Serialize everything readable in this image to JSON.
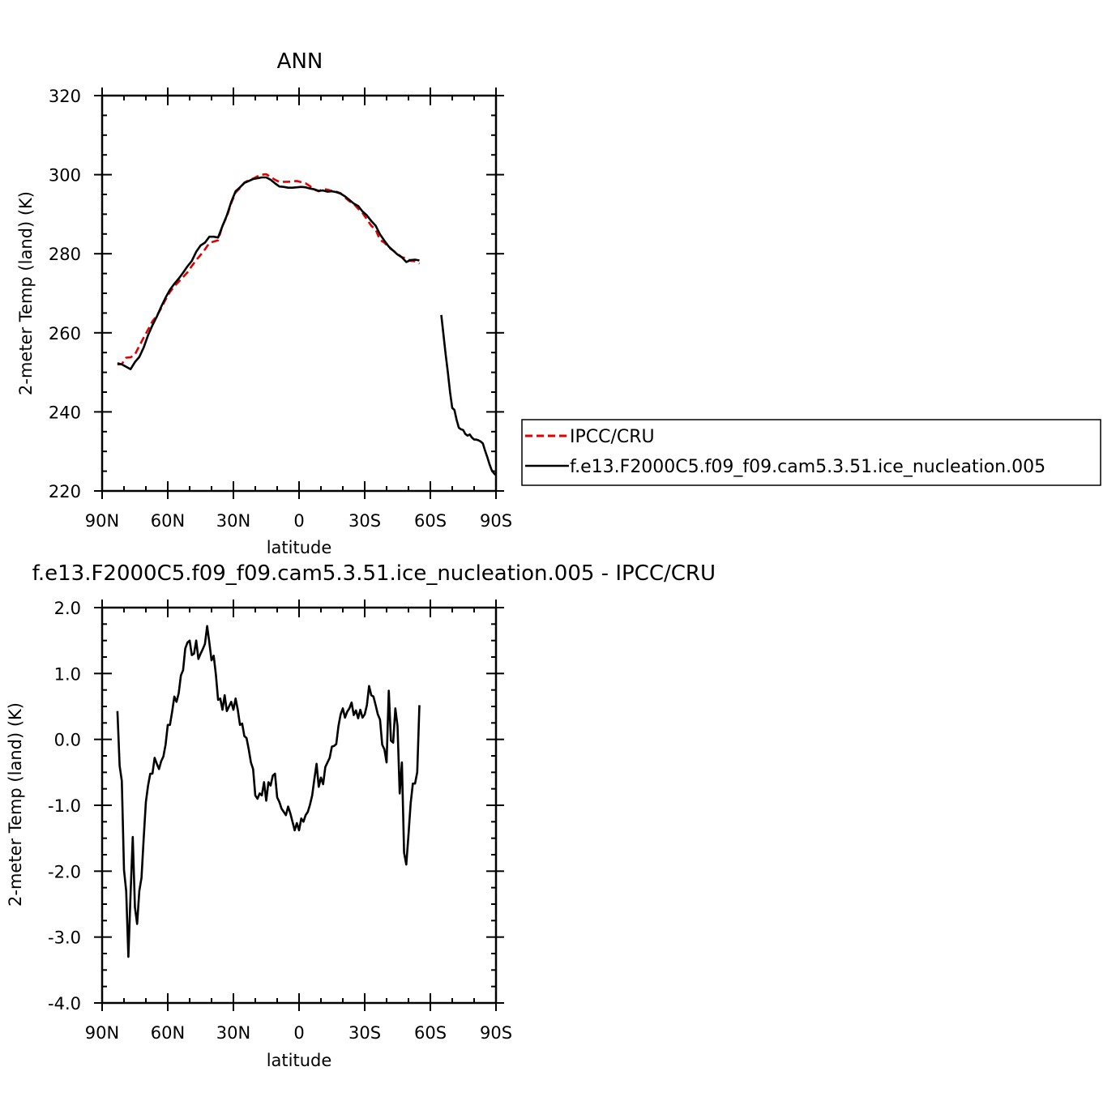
{
  "chart_data": [
    {
      "type": "line",
      "title": "ANN",
      "xlabel": "latitude",
      "ylabel": "2-meter Temp (land) (K)",
      "xlim": [
        90,
        -90
      ],
      "ylim": [
        220,
        320
      ],
      "xticks": [
        90,
        60,
        30,
        0,
        -30,
        -60,
        -90
      ],
      "xtick_labels": [
        "90N",
        "60N",
        "30N",
        "0",
        "30S",
        "60S",
        "90S"
      ],
      "yticks": [
        220,
        240,
        260,
        280,
        300,
        320
      ],
      "ytick_labels": [
        "220",
        "240",
        "260",
        "280",
        "300",
        "320"
      ],
      "legend_position": "right",
      "series": [
        {
          "name": "IPCC/CRU",
          "color": "#e00000",
          "dash": "dashed",
          "segments": [
            {
              "x": [
                83,
                81,
                79,
                77,
                75,
                73,
                71,
                69,
                67,
                65,
                63,
                61,
                59,
                57,
                55,
                53,
                51,
                49,
                47,
                45,
                43,
                41,
                39,
                37,
                35,
                33,
                31,
                29,
                27,
                25,
                23,
                21,
                19,
                17,
                15,
                13,
                11,
                9,
                7,
                5,
                3,
                1,
                -1,
                -3,
                -5,
                -7,
                -9,
                -11,
                -13,
                -15,
                -17,
                -19,
                -21,
                -23,
                -25,
                -27,
                -29,
                -31,
                -33,
                -35,
                -37,
                -39,
                -41,
                -43,
                -45,
                -47,
                -49,
                -51,
                -53,
                -55
              ],
              "y": [
                252.0,
                252.1,
                253.7,
                253.8,
                254.5,
                256.7,
                258.8,
                260.8,
                262.9,
                264.3,
                266.2,
                268.4,
                270.3,
                271.8,
                272.9,
                274.1,
                275.3,
                276.9,
                278.4,
                279.7,
                281.1,
                282.7,
                283.1,
                283.4,
                287.1,
                289.4,
                292.8,
                295.5,
                296.6,
                298.0,
                298.6,
                299.0,
                299.6,
                300.0,
                300.1,
                299.4,
                298.7,
                298.2,
                298.2,
                298.2,
                298.3,
                298.4,
                298.1,
                297.8,
                297.1,
                296.2,
                295.8,
                296.4,
                296.2,
                295.9,
                295.7,
                295.3,
                294.2,
                293.3,
                292.6,
                291.4,
                290.3,
                288.7,
                287.1,
                286.1,
                283.5,
                282.8,
                281.6,
                280.8,
                280.0,
                279.1,
                278.9,
                278.2,
                278.1,
                277.5
              ]
            }
          ]
        },
        {
          "name": "f.e13.F2000C5.f09_f09.cam5.3.51.ice_nucleation.005",
          "color": "#000000",
          "dash": "solid",
          "segments": [
            {
              "x": [
                83,
                81,
                79,
                77,
                75,
                73,
                71,
                69,
                67,
                65,
                63,
                61,
                59,
                57,
                55,
                53,
                51,
                49,
                47,
                45,
                43,
                41,
                39,
                37,
                35,
                33,
                31,
                29,
                27,
                25,
                23,
                21,
                19,
                17,
                15,
                13,
                11,
                9,
                7,
                5,
                3,
                1,
                -1,
                -3,
                -5,
                -7,
                -9,
                -11,
                -13,
                -15,
                -17,
                -19,
                -21,
                -23,
                -25,
                -27,
                -29,
                -31,
                -33,
                -35,
                -37,
                -39,
                -41,
                -43,
                -45,
                -47,
                -49,
                -51,
                -53,
                -55
              ],
              "y": [
                252.3,
                252.0,
                251.4,
                250.8,
                252.6,
                253.9,
                256.3,
                259.4,
                261.9,
                264.1,
                266.6,
                268.9,
                270.9,
                272.4,
                273.7,
                275.2,
                276.8,
                278.2,
                280.5,
                282.1,
                282.8,
                284.3,
                284.3,
                284.1,
                287.0,
                289.7,
                293.1,
                295.8,
                296.8,
                297.9,
                298.4,
                298.9,
                299.1,
                299.3,
                299.3,
                298.7,
                297.8,
                297.0,
                296.9,
                296.7,
                296.7,
                296.8,
                296.9,
                296.8,
                296.5,
                296.3,
                295.9,
                296.0,
                295.7,
                295.8,
                295.6,
                295.2,
                294.5,
                293.6,
                292.7,
                292.1,
                290.7,
                289.7,
                288.3,
                287.1,
                284.9,
                283.3,
                281.8,
                280.8,
                279.8,
                279.1,
                277.9,
                278.4,
                278.5,
                278.3
              ]
            },
            {
              "x": [
                -65,
                -66,
                -67,
                -68,
                -69,
                -70,
                -71,
                -72,
                -73,
                -74,
                -75,
                -76,
                -77,
                -78,
                -79,
                -80,
                -81,
                -82,
                -83,
                -84,
                -85,
                -86,
                -87,
                -88,
                -89,
                -90
              ],
              "y": [
                264.5,
                259.5,
                254.5,
                250.0,
                245.0,
                241.0,
                240.5,
                238.0,
                236.0,
                235.6,
                235.4,
                234.4,
                234.0,
                234.3,
                233.5,
                233.0,
                233.0,
                232.8,
                232.5,
                232.0,
                230.2,
                228.6,
                226.8,
                225.3,
                224.5,
                224.0
              ]
            }
          ]
        }
      ]
    },
    {
      "type": "line",
      "title": "f.e13.F2000C5.f09_f09.cam5.3.51.ice_nucleation.005 - IPCC/CRU",
      "xlabel": "latitude",
      "ylabel": "2-meter Temp (land) (K)",
      "xlim": [
        90,
        -90
      ],
      "ylim": [
        -4.0,
        2.0
      ],
      "xticks": [
        90,
        60,
        30,
        0,
        -30,
        -60,
        -90
      ],
      "xtick_labels": [
        "90N",
        "60N",
        "30N",
        "0",
        "30S",
        "60S",
        "90S"
      ],
      "yticks": [
        -4.0,
        -3.0,
        -2.0,
        -1.0,
        0.0,
        1.0,
        2.0
      ],
      "ytick_labels": [
        "-4.0",
        "-3.0",
        "-2.0",
        "-1.0",
        "0.0",
        "1.0",
        "2.0"
      ],
      "series": [
        {
          "name": "",
          "color": "#000000",
          "dash": "solid",
          "segments": [
            {
              "x": [
                83,
                82,
                81,
                80,
                79,
                78,
                77,
                76,
                75,
                74,
                73,
                72,
                71,
                70,
                69,
                68,
                67,
                66,
                65,
                64,
                63,
                62,
                61,
                60,
                59,
                58,
                57,
                56,
                55,
                54,
                53,
                52,
                51,
                50,
                49,
                48,
                47,
                46,
                45,
                44,
                43,
                42,
                41,
                40,
                39,
                38,
                37,
                36,
                35,
                34,
                33,
                32,
                31,
                30,
                29,
                28,
                27,
                26,
                25,
                24,
                23,
                22,
                21,
                20,
                19,
                18,
                17,
                16,
                15,
                14,
                13,
                12,
                11,
                10,
                9,
                8,
                7,
                6,
                5,
                4,
                3,
                2,
                1,
                0,
                -1,
                -2,
                -3,
                -4,
                -5,
                -6,
                -7,
                -8,
                -9,
                -10,
                -11,
                -12,
                -13,
                -14,
                -15,
                -16,
                -17,
                -18,
                -19,
                -20,
                -21,
                -22,
                -23,
                -24,
                -25,
                -26,
                -27,
                -28,
                -29,
                -30,
                -31,
                -32,
                -33,
                -34,
                -35,
                -36,
                -37,
                -38,
                -39,
                -40,
                -41,
                -42,
                -43,
                -44,
                -45,
                -46,
                -47,
                -48,
                -49,
                -50,
                -51,
                -52,
                -53,
                -54,
                -55
              ],
              "y": [
                0.43,
                -0.4,
                -0.63,
                -1.98,
                -2.3,
                -3.3,
                -2.35,
                -1.48,
                -2.55,
                -2.8,
                -2.3,
                -2.1,
                -1.5,
                -0.95,
                -0.7,
                -0.52,
                -0.52,
                -0.28,
                -0.37,
                -0.45,
                -0.33,
                -0.26,
                -0.08,
                0.22,
                0.22,
                0.42,
                0.65,
                0.57,
                0.7,
                0.97,
                1.05,
                1.38,
                1.47,
                1.5,
                1.28,
                1.3,
                1.5,
                1.22,
                1.3,
                1.37,
                1.45,
                1.72,
                1.47,
                1.2,
                1.27,
                0.98,
                0.6,
                0.62,
                0.45,
                0.67,
                0.43,
                0.5,
                0.57,
                0.45,
                0.62,
                0.45,
                0.22,
                0.24,
                0.05,
                0.02,
                -0.15,
                -0.35,
                -0.45,
                -0.85,
                -0.9,
                -0.82,
                -0.85,
                -0.65,
                -0.93,
                -0.65,
                -0.7,
                -0.55,
                -0.52,
                -0.88,
                -0.95,
                -1.05,
                -1.1,
                -1.15,
                -1.02,
                -1.12,
                -1.25,
                -1.38,
                -1.27,
                -1.38,
                -1.2,
                -1.25,
                -1.15,
                -1.1,
                -0.99,
                -0.85,
                -0.6,
                -0.37,
                -0.72,
                -0.58,
                -0.68,
                -0.42,
                -0.35,
                -0.28,
                -0.11,
                -0.1,
                -0.07,
                0.2,
                0.38,
                0.47,
                0.33,
                0.42,
                0.47,
                0.56,
                0.37,
                0.44,
                0.32,
                0.45,
                0.33,
                0.38,
                0.52,
                0.81,
                0.67,
                0.65,
                0.52,
                0.38,
                0.3,
                -0.08,
                -0.15,
                -0.35,
                0.74,
                -0.02,
                -0.05,
                0.47,
                0.2,
                -0.82,
                -0.35,
                -1.72,
                -1.9,
                -1.45,
                -0.97,
                -0.67,
                -0.67,
                -0.5,
                0.52
              ]
            }
          ]
        }
      ]
    }
  ]
}
